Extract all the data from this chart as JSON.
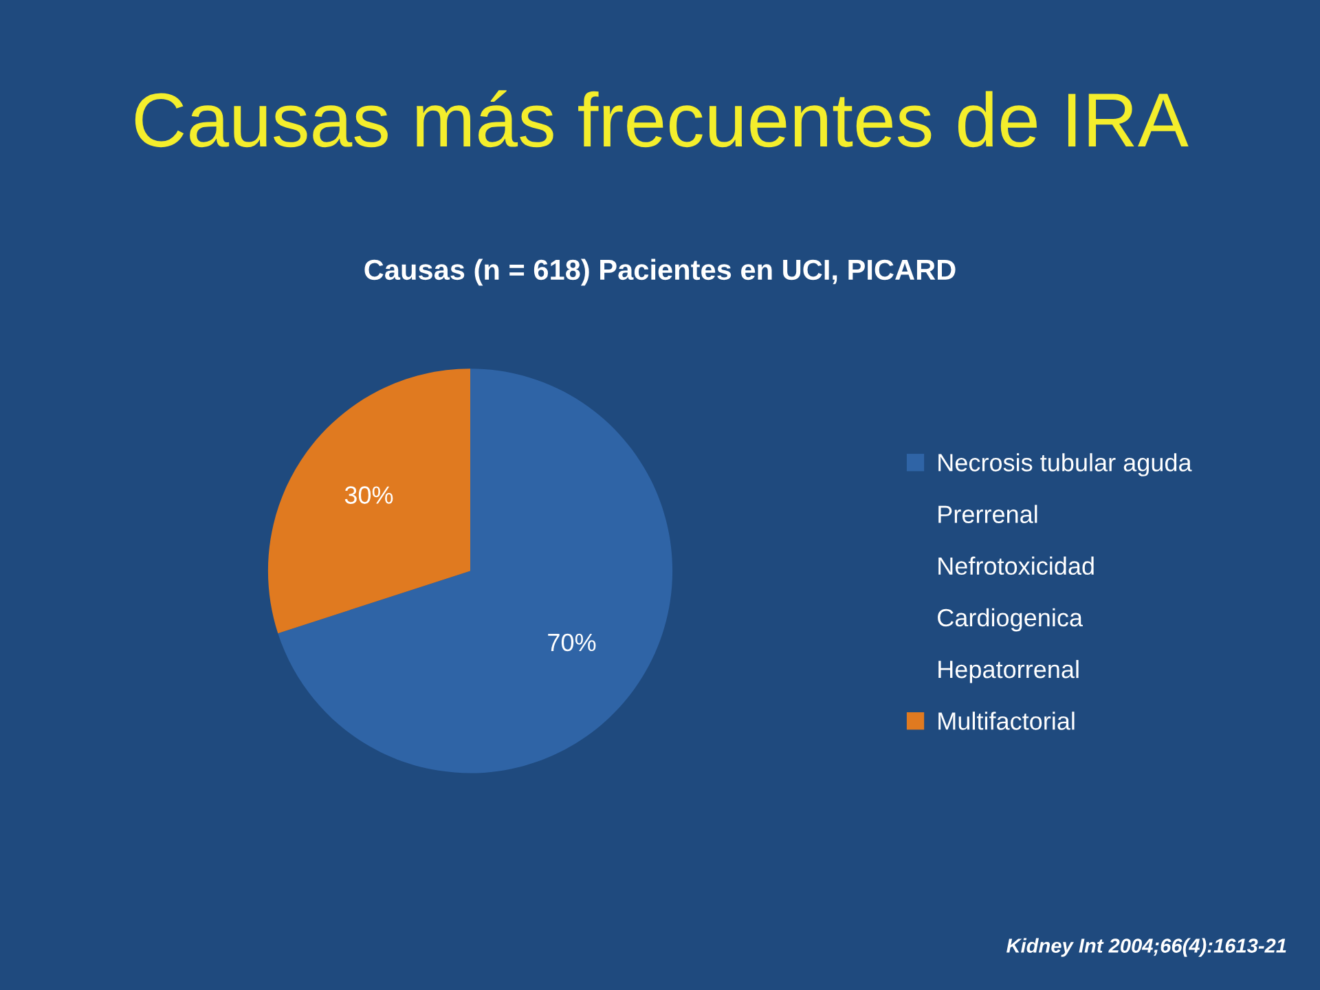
{
  "chart_data": {
    "type": "pie",
    "title": "Causas más frecuentes de IRA",
    "subtitle": "Causas (n = 618) Pacientes en UCI, PICARD",
    "categories": [
      "Necrosis tubular aguda",
      "Prerrenal",
      "Nefrotoxicidad",
      "Cardiogenica",
      "Hepatorrenal",
      "Multifactorial"
    ],
    "values": [
      70,
      0,
      0,
      0,
      0,
      30
    ],
    "colors": [
      "#2f64a6",
      null,
      null,
      null,
      null,
      "#e07a20"
    ],
    "value_labels": [
      "70%",
      null,
      null,
      null,
      null,
      "30%"
    ],
    "legend": "right",
    "annotations": [
      "Kidney Int 2004;66(4):1613-21"
    ]
  }
}
